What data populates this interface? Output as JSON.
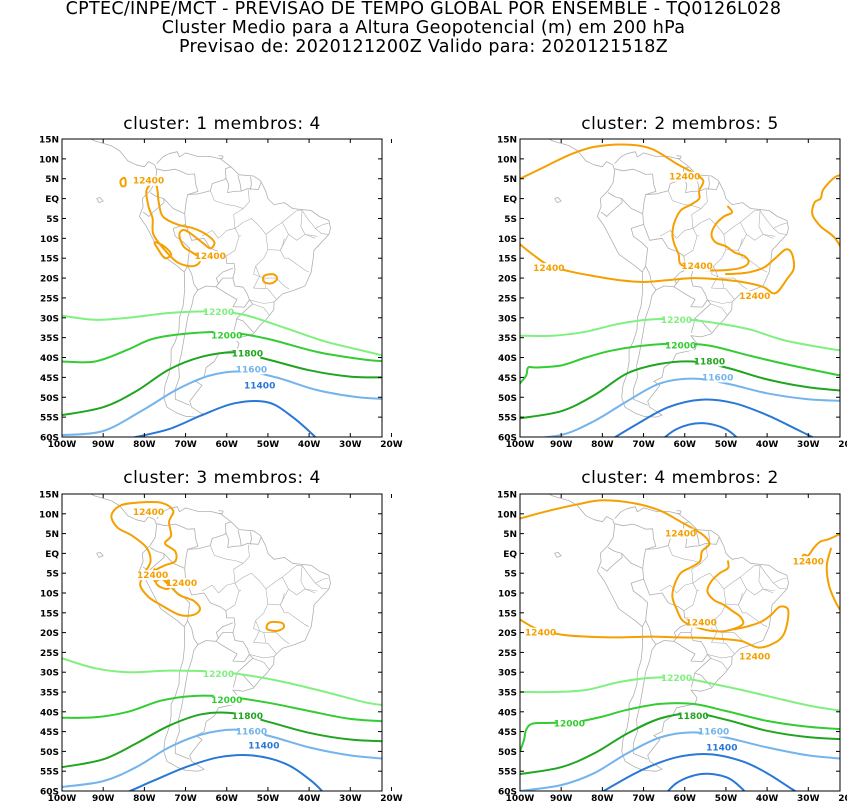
{
  "header": {
    "line1": "CPTEC/INPE/MCT - PREVISAO DE TEMPO GLOBAL POR ENSEMBLE - TQ0126L028",
    "line2": "Cluster Medio para a Altura Geopotencial (m) em 200 hPa",
    "line3": "Previsao de: 2020121200Z   Valido para: 2020121518Z"
  },
  "axes": {
    "lat_labels": [
      "15N",
      "10N",
      "5N",
      "EQ",
      "5S",
      "10S",
      "15S",
      "20S",
      "25S",
      "30S",
      "35S",
      "40S",
      "45S",
      "50S",
      "55S",
      "60S"
    ],
    "lon_labels": [
      "100W",
      "90W",
      "80W",
      "70W",
      "60W",
      "50W",
      "40W",
      "30W",
      "20W"
    ]
  },
  "colors": {
    "c12400": "#f5a000",
    "c12200": "#80f080",
    "c12000": "#33cc33",
    "c11800": "#1fa51f",
    "c11600": "#73b4ec",
    "c11400": "#2a78d6",
    "coast": "#b0b0b0"
  },
  "panels": [
    {
      "title": "cluster: 1   membros: 4",
      "labels": [
        {
          "text": "12400",
          "lon": -79,
          "lat": 4.5,
          "level": "c12400"
        },
        {
          "text": "12400",
          "lon": -64,
          "lat": -14.5,
          "level": "c12400"
        },
        {
          "text": "12200",
          "lon": -62,
          "lat": -28.5,
          "level": "c12200"
        },
        {
          "text": "12000",
          "lon": -60,
          "lat": -34.5,
          "level": "c12000"
        },
        {
          "text": "11800",
          "lon": -55,
          "lat": -39,
          "level": "c11800"
        },
        {
          "text": "11600",
          "lon": -54,
          "lat": -43,
          "level": "c11600"
        },
        {
          "text": "11400",
          "lon": -52,
          "lat": -47,
          "level": "c11400"
        }
      ]
    },
    {
      "title": "cluster: 2   membros: 5",
      "labels": [
        {
          "text": "12400",
          "lon": -60,
          "lat": 5.5,
          "level": "c12400"
        },
        {
          "text": "12400",
          "lon": -93,
          "lat": -17.5,
          "level": "c12400"
        },
        {
          "text": "12400",
          "lon": -57,
          "lat": -17,
          "level": "c12400"
        },
        {
          "text": "12400",
          "lon": -43,
          "lat": -24.5,
          "level": "c12400"
        },
        {
          "text": "12200",
          "lon": -62,
          "lat": -30.5,
          "level": "c12200"
        },
        {
          "text": "12000",
          "lon": -61,
          "lat": -37,
          "level": "c12000"
        },
        {
          "text": "11800",
          "lon": -54,
          "lat": -41,
          "level": "c11800"
        },
        {
          "text": "11600",
          "lon": -52,
          "lat": -45,
          "level": "c11600"
        }
      ]
    },
    {
      "title": "cluster: 3   membros: 4",
      "labels": [
        {
          "text": "12400",
          "lon": -79,
          "lat": 10.5,
          "level": "c12400"
        },
        {
          "text": "12400",
          "lon": -78,
          "lat": -5.5,
          "level": "c12400"
        },
        {
          "text": "12400",
          "lon": -71,
          "lat": -7.5,
          "level": "c12400"
        },
        {
          "text": "12200",
          "lon": -62,
          "lat": -30.5,
          "level": "c12200"
        },
        {
          "text": "12000",
          "lon": -60,
          "lat": -37,
          "level": "c12000"
        },
        {
          "text": "11800",
          "lon": -55,
          "lat": -41,
          "level": "c11800"
        },
        {
          "text": "11600",
          "lon": -54,
          "lat": -45,
          "level": "c11600"
        },
        {
          "text": "11400",
          "lon": -51,
          "lat": -48.5,
          "level": "c11400"
        }
      ]
    },
    {
      "title": "cluster: 4   membros: 2",
      "labels": [
        {
          "text": "12400",
          "lon": -61,
          "lat": 5,
          "level": "c12400"
        },
        {
          "text": "12400",
          "lon": -30,
          "lat": -2,
          "level": "c12400"
        },
        {
          "text": "12400",
          "lon": -95,
          "lat": -20,
          "level": "c12400"
        },
        {
          "text": "12400",
          "lon": -56,
          "lat": -17.5,
          "level": "c12400"
        },
        {
          "text": "12400",
          "lon": -43,
          "lat": -26,
          "level": "c12400"
        },
        {
          "text": "12200",
          "lon": -62,
          "lat": -31.5,
          "level": "c12200"
        },
        {
          "text": "12000",
          "lon": -88,
          "lat": -43,
          "level": "c12000"
        },
        {
          "text": "11800",
          "lon": -58,
          "lat": -41,
          "level": "c11800"
        },
        {
          "text": "11600",
          "lon": -53,
          "lat": -45,
          "level": "c11600"
        },
        {
          "text": "11400",
          "lon": -51,
          "lat": -49,
          "level": "c11400"
        }
      ]
    }
  ]
}
